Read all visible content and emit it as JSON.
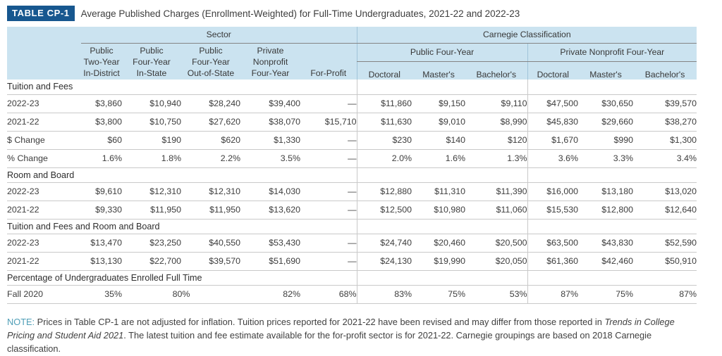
{
  "title": {
    "tag": "TABLE CP-1",
    "text": "Average Published Charges (Enrollment-Weighted) for Full-Time Undergraduates, 2021-22 and 2022-23"
  },
  "table": {
    "header": {
      "sector_label": "Sector",
      "carnegie_label": "Carnegie Classification",
      "carnegie_public_label": "Public Four-Year",
      "carnegie_private_label": "Private Nonprofit Four-Year",
      "sector_columns": [
        "Public\nTwo-Year\nIn-District",
        "Public\nFour-Year\nIn-State",
        "Public\nFour-Year\nOut-of-State",
        "Private\nNonprofit\nFour-Year",
        "For-Profit"
      ],
      "carnegie_columns": [
        "Doctoral",
        "Master's",
        "Bachelor's",
        "Doctoral",
        "Master's",
        "Bachelor's"
      ]
    },
    "rows": [
      {
        "type": "section",
        "label": "Tuition and Fees"
      },
      {
        "type": "data",
        "label": "2022-23",
        "cells": [
          "$3,860",
          "$10,940",
          "$28,240",
          "$39,400",
          "—",
          "$11,860",
          "$9,150",
          "$9,110",
          "$47,500",
          "$30,650",
          "$39,570"
        ]
      },
      {
        "type": "data",
        "label": "2021-22",
        "cells": [
          "$3,800",
          "$10,750",
          "$27,620",
          "$38,070",
          "$15,710",
          "$11,630",
          "$9,010",
          "$8,990",
          "$45,830",
          "$29,660",
          "$38,270"
        ]
      },
      {
        "type": "data",
        "label": "$ Change",
        "cells": [
          "$60",
          "$190",
          "$620",
          "$1,330",
          "—",
          "$230",
          "$140",
          "$120",
          "$1,670",
          "$990",
          "$1,300"
        ]
      },
      {
        "type": "data",
        "label": "% Change",
        "cells": [
          "1.6%",
          "1.8%",
          "2.2%",
          "3.5%",
          "—",
          "2.0%",
          "1.6%",
          "1.3%",
          "3.6%",
          "3.3%",
          "3.4%"
        ]
      },
      {
        "type": "section",
        "label": "Room and Board"
      },
      {
        "type": "data",
        "label": "2022-23",
        "cells": [
          "$9,610",
          "$12,310",
          "$12,310",
          "$14,030",
          "—",
          "$12,880",
          "$11,310",
          "$11,390",
          "$16,000",
          "$13,180",
          "$13,020"
        ]
      },
      {
        "type": "data",
        "label": "2021-22",
        "cells": [
          "$9,330",
          "$11,950",
          "$11,950",
          "$13,620",
          "—",
          "$12,500",
          "$10,980",
          "$11,060",
          "$15,530",
          "$12,800",
          "$12,640"
        ]
      },
      {
        "type": "section",
        "label": "Tuition and Fees and Room and Board"
      },
      {
        "type": "data",
        "label": "2022-23",
        "cells": [
          "$13,470",
          "$23,250",
          "$40,550",
          "$53,430",
          "—",
          "$24,740",
          "$20,460",
          "$20,500",
          "$63,500",
          "$43,830",
          "$52,590"
        ]
      },
      {
        "type": "data",
        "label": "2021-22",
        "cells": [
          "$13,130",
          "$22,700",
          "$39,570",
          "$51,690",
          "—",
          "$24,130",
          "$19,990",
          "$20,050",
          "$61,360",
          "$42,460",
          "$50,910"
        ]
      },
      {
        "type": "section",
        "label": "Percentage of Undergraduates Enrolled Full Time"
      },
      {
        "type": "data",
        "label": "Fall 2020",
        "cells": [
          {
            "text": "35%"
          },
          {
            "text": "80%",
            "colspan": 2,
            "align": "center"
          },
          {
            "text": "82%"
          },
          {
            "text": "68%"
          },
          {
            "text": "83%"
          },
          {
            "text": "75%"
          },
          {
            "text": "53%"
          },
          {
            "text": "87%"
          },
          {
            "text": "75%"
          },
          {
            "text": "87%"
          }
        ]
      }
    ]
  },
  "note": {
    "label": "NOTE:",
    "seg1": " Prices in Table CP-1 are not adjusted for inflation. Tuition prices reported for 2021-22 have been revised and may differ from those reported in ",
    "italic": "Trends in College Pricing and Student Aid 2021",
    "seg2": ". The latest tuition and fee estimate available for the for-profit sector is for 2021-22. Carnegie groupings are based on 2018 Carnegie classification."
  },
  "colors": {
    "tag_background": "#17578f",
    "header_band": "#cbe3f0",
    "note_label": "#4f9eb7"
  }
}
